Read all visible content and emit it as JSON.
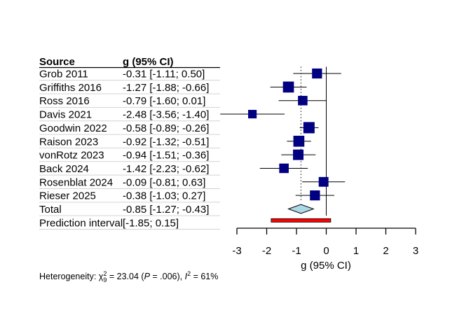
{
  "chart_data": {
    "type": "forest",
    "columns": [
      "Source",
      "g (95% CI)"
    ],
    "studies": [
      {
        "source": "Grob 2011",
        "ci_text": "-0.31 [-1.11;  0.50]",
        "g": -0.31,
        "lo": -1.11,
        "hi": 0.5,
        "weight": 0.75
      },
      {
        "source": "Griffiths 2016",
        "ci_text": "-1.27 [-1.88; -0.66]",
        "g": -1.27,
        "lo": -1.88,
        "hi": -0.66,
        "weight": 0.95
      },
      {
        "source": "Ross 2016",
        "ci_text": "-0.79 [-1.60;  0.01]",
        "g": -0.79,
        "lo": -1.6,
        "hi": 0.01,
        "weight": 0.65
      },
      {
        "source": "Davis 2021",
        "ci_text": "-2.48 [-3.56; -1.40]",
        "g": -2.48,
        "lo": -3.56,
        "hi": -1.4,
        "weight": 0.45
      },
      {
        "source": "Goodwin 2022",
        "ci_text": "-0.58 [-0.89; -0.26]",
        "g": -0.58,
        "lo": -0.89,
        "hi": -0.26,
        "weight": 1.0
      },
      {
        "source": "Raison 2023",
        "ci_text": "-0.92 [-1.32; -0.51]",
        "g": -0.92,
        "lo": -1.32,
        "hi": -0.51,
        "weight": 0.95
      },
      {
        "source": "vonRotz 2023",
        "ci_text": "-0.94 [-1.51; -0.36]",
        "g": -0.94,
        "lo": -1.51,
        "hi": -0.36,
        "weight": 0.85
      },
      {
        "source": "Back 2024",
        "ci_text": "-1.42 [-2.23; -0.62]",
        "g": -1.42,
        "lo": -2.23,
        "hi": -0.62,
        "weight": 0.65
      },
      {
        "source": "Rosenblat 2024",
        "ci_text": "-0.09 [-0.81;  0.63]",
        "g": -0.09,
        "lo": -0.81,
        "hi": 0.63,
        "weight": 0.7
      },
      {
        "source": "Rieser 2025",
        "ci_text": "-0.38 [-1.03;  0.27]",
        "g": -0.38,
        "lo": -1.03,
        "hi": 0.27,
        "weight": 0.75
      }
    ],
    "total": {
      "source": "Total",
      "ci_text": "-0.85 [-1.27; -0.43]",
      "g": -0.85,
      "lo": -1.27,
      "hi": -0.43
    },
    "prediction": {
      "source": "Prediction interval",
      "ci_text": "[-1.85;  0.15]",
      "lo": -1.85,
      "hi": 0.15
    },
    "xlabel": "g (95% CI)",
    "xlim": [
      -3,
      3
    ],
    "xticks": [
      -3,
      -2,
      -1,
      0,
      1,
      2,
      3
    ],
    "reference_line": 0,
    "pooled_line": -0.85,
    "heterogeneity": {
      "label": "Heterogeneity:",
      "chi2": "23.04",
      "df": "9",
      "p": ".006",
      "i2": "61%"
    },
    "colors": {
      "square": "#000080",
      "diamond": "#add8e6",
      "prediction": "#ff0000",
      "text": "#000000",
      "row_line": "#d3d3d3"
    }
  }
}
